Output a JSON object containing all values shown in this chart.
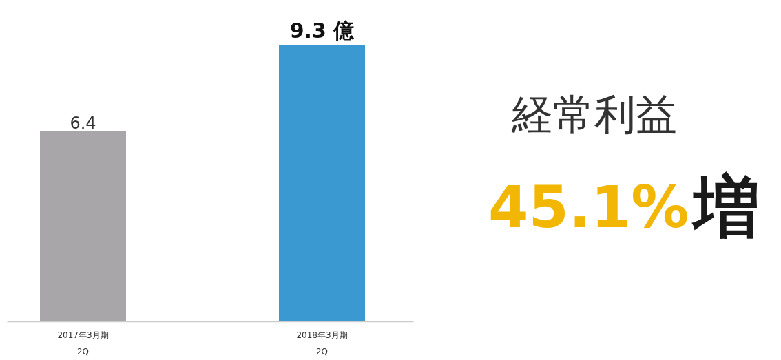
{
  "chart_data": {
    "type": "bar",
    "categories": [
      "2017年3月期\n2Q",
      "2018年3月期\n2Q"
    ],
    "values": [
      6.4,
      9.3
    ],
    "colors": [
      "#a8a6a9",
      "#3b99d1"
    ],
    "value_labels": [
      "6.4",
      "9.3 億"
    ],
    "grid": false,
    "annotations": [
      "経常利益",
      "45.1%",
      "増"
    ]
  }
}
